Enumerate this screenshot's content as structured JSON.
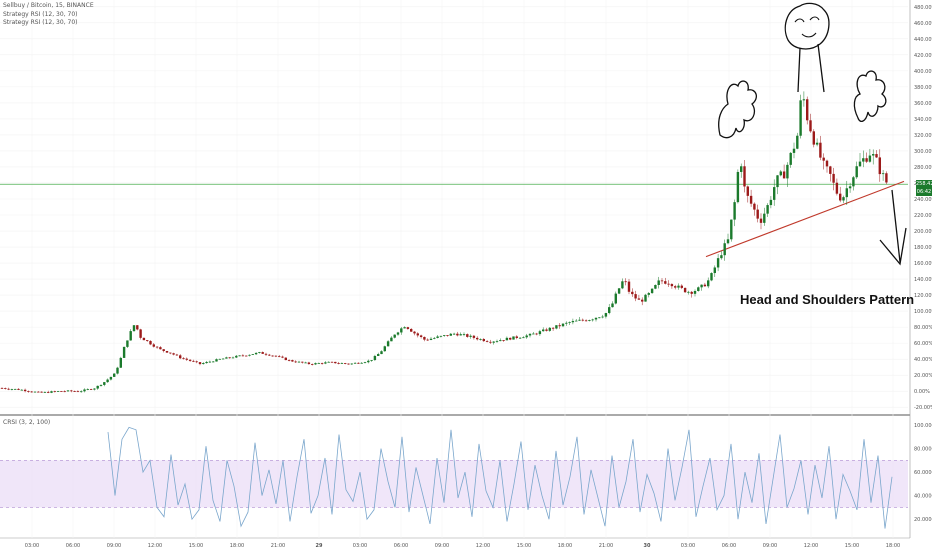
{
  "header": {
    "symbol_line": "Sellbuy / Bitcoin, 15, BINANCE",
    "indicators": [
      "Strategy RSI (12, 30, 70)",
      "Strategy RSI (12, 30, 70)"
    ]
  },
  "annotation": "Head and Shoulders Pattern",
  "price_badges": [
    "258.42%",
    "06:42"
  ],
  "oscillator_label": "CRSI (3, 2, 100)",
  "colors": {
    "up_candle": "#1b7a2c",
    "down_candle": "#9c1a1a",
    "current_line": "#4caf50",
    "trendline": "#c0392b",
    "oscillator_line": "#7aa6cc",
    "band_fill": "#eadcf7",
    "band_border": "#b18fd1",
    "sketch": "#111111"
  },
  "chart_data": [
    {
      "type": "candlestick",
      "title": "Sellbuy / Bitcoin, 15, BINANCE",
      "y_unit": "%",
      "y_ticks": [
        "-20.00%",
        "0.00%",
        "20.00%",
        "40.00%",
        "60.00%",
        "80.00%",
        "100.00%",
        "120.00%",
        "140.00%",
        "160.00%",
        "180.00%",
        "200.00%",
        "220.00%",
        "240.00%",
        "260.00%",
        "280.00%",
        "300.00%",
        "320.00%",
        "340.00%",
        "360.00%",
        "380.00%",
        "400.00%",
        "420.00%",
        "440.00%",
        "460.00%",
        "480.00%"
      ],
      "ylim": [
        -26,
        486
      ],
      "x_ticks": [
        "03:00",
        "06:00",
        "09:00",
        "12:00",
        "15:00",
        "18:00",
        "21:00",
        "29",
        "03:00",
        "06:00",
        "09:00",
        "12:00",
        "15:00",
        "18:00",
        "21:00",
        "30",
        "03:00",
        "06:00",
        "09:00",
        "12:00",
        "15:00",
        "18:00"
      ],
      "current_value": 258.42,
      "approx_close_path": [
        [
          0,
          4
        ],
        [
          20,
          2
        ],
        [
          40,
          -2
        ],
        [
          60,
          0
        ],
        [
          80,
          0
        ],
        [
          95,
          4
        ],
        [
          105,
          12
        ],
        [
          115,
          22
        ],
        [
          120,
          38
        ],
        [
          125,
          58
        ],
        [
          130,
          72
        ],
        [
          135,
          85
        ],
        [
          140,
          68
        ],
        [
          150,
          60
        ],
        [
          160,
          52
        ],
        [
          170,
          48
        ],
        [
          180,
          42
        ],
        [
          190,
          38
        ],
        [
          200,
          34
        ],
        [
          220,
          40
        ],
        [
          240,
          44
        ],
        [
          260,
          48
        ],
        [
          275,
          44
        ],
        [
          290,
          38
        ],
        [
          310,
          34
        ],
        [
          330,
          36
        ],
        [
          350,
          34
        ],
        [
          370,
          38
        ],
        [
          380,
          48
        ],
        [
          395,
          72
        ],
        [
          405,
          82
        ],
        [
          415,
          72
        ],
        [
          425,
          64
        ],
        [
          440,
          68
        ],
        [
          455,
          72
        ],
        [
          470,
          68
        ],
        [
          490,
          62
        ],
        [
          510,
          66
        ],
        [
          530,
          70
        ],
        [
          550,
          78
        ],
        [
          570,
          86
        ],
        [
          590,
          90
        ],
        [
          605,
          96
        ],
        [
          612,
          108
        ],
        [
          618,
          126
        ],
        [
          624,
          140
        ],
        [
          630,
          122
        ],
        [
          640,
          112
        ],
        [
          650,
          122
        ],
        [
          660,
          138
        ],
        [
          670,
          136
        ],
        [
          680,
          128
        ],
        [
          690,
          124
        ],
        [
          700,
          128
        ],
        [
          710,
          140
        ],
        [
          716,
          158
        ],
        [
          722,
          175
        ],
        [
          728,
          188
        ],
        [
          735,
          238
        ],
        [
          740,
          298
        ],
        [
          745,
          248
        ],
        [
          752,
          232
        ],
        [
          760,
          212
        ],
        [
          768,
          232
        ],
        [
          776,
          262
        ],
        [
          784,
          272
        ],
        [
          792,
          298
        ],
        [
          798,
          322
        ],
        [
          802,
          378
        ],
        [
          806,
          348
        ],
        [
          812,
          322
        ],
        [
          818,
          300
        ],
        [
          824,
          280
        ],
        [
          830,
          270
        ],
        [
          836,
          250
        ],
        [
          842,
          240
        ],
        [
          850,
          262
        ],
        [
          858,
          282
        ],
        [
          864,
          290
        ],
        [
          870,
          298
        ],
        [
          876,
          288
        ],
        [
          882,
          270
        ],
        [
          888,
          258
        ]
      ]
    },
    {
      "type": "line",
      "title": "CRSI (3, 2, 100)",
      "y_ticks": [
        "20.0000",
        "40.0000",
        "60.0000",
        "80.0000",
        "100.0000"
      ],
      "ylim": [
        4,
        106
      ],
      "band": [
        30,
        70
      ],
      "series": [
        {
          "values": [
            94,
            40,
            88,
            98,
            96,
            60,
            70,
            30,
            22,
            75,
            32,
            50,
            20,
            28,
            82,
            36,
            18,
            70,
            48,
            14,
            26,
            85,
            40,
            62,
            33,
            70,
            18,
            56,
            88,
            25,
            40,
            72,
            24,
            92,
            45,
            35,
            60,
            20,
            28,
            80,
            52,
            30,
            90,
            26,
            64,
            40,
            16,
            72,
            34,
            96,
            38,
            60,
            22,
            84,
            44,
            30,
            70,
            18,
            50,
            86,
            28,
            66,
            40,
            20,
            78,
            32,
            56,
            90,
            24,
            62,
            38,
            14,
            74,
            30,
            52,
            88,
            26,
            58,
            42,
            18,
            80,
            36,
            64,
            96,
            22,
            48,
            72,
            28,
            40,
            84,
            20,
            60,
            34,
            76,
            16,
            54,
            92,
            30,
            46,
            70,
            24,
            66,
            38,
            82,
            20,
            58,
            44,
            28,
            88,
            34,
            74,
            12,
            56
          ]
        }
      ]
    }
  ]
}
